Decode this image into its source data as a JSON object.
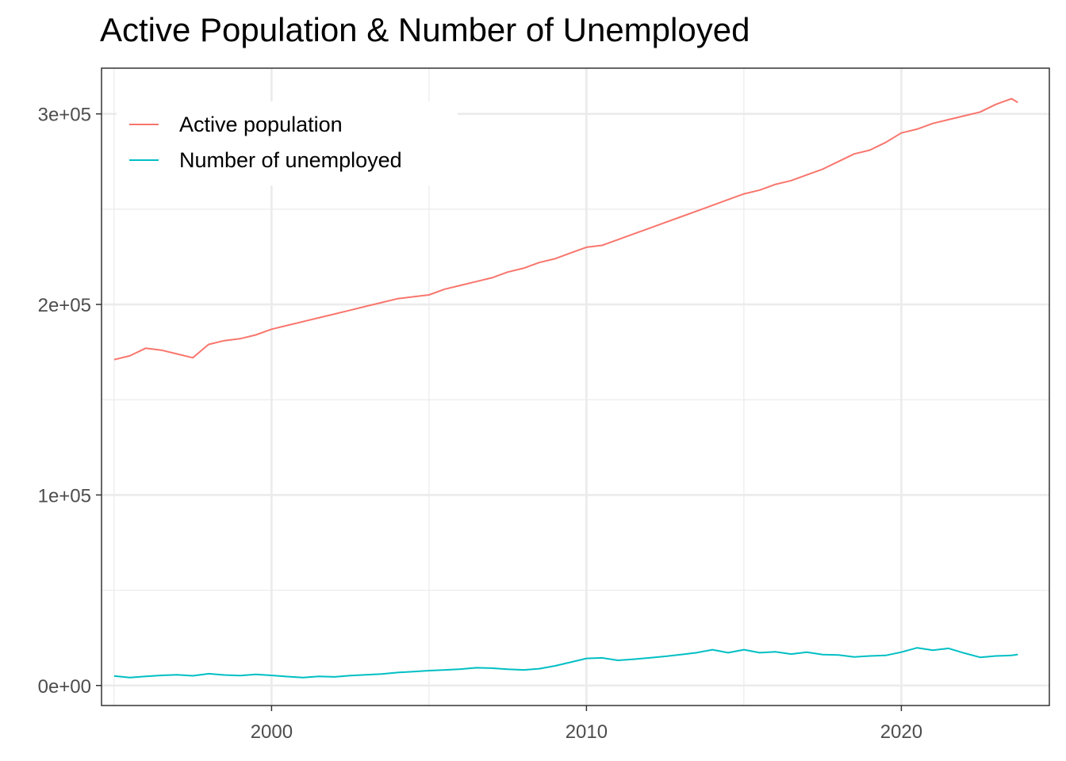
{
  "chart_data": {
    "type": "line",
    "title": "Active Population & Number of Unemployed",
    "xlabel": "",
    "ylabel": "",
    "x_ticks": [
      2000,
      2010,
      2020
    ],
    "y_ticks": [
      0,
      100000,
      200000,
      300000
    ],
    "y_tick_labels": [
      "0e+00",
      "1e+05",
      "2e+05",
      "3e+05"
    ],
    "xlim": [
      1994.6,
      2024.7
    ],
    "ylim": [
      -10500,
      324000
    ],
    "grid": true,
    "legend_position": "top-left inside",
    "series": [
      {
        "name": "Active population",
        "color": "#F8766D",
        "x": [
          1995.0,
          1995.5,
          1996.0,
          1996.5,
          1997.0,
          1997.5,
          1998.0,
          1998.5,
          1999.0,
          1999.5,
          2000.0,
          2000.5,
          2001.0,
          2001.5,
          2002.0,
          2002.5,
          2003.0,
          2003.5,
          2004.0,
          2004.5,
          2005.0,
          2005.5,
          2006.0,
          2006.5,
          2007.0,
          2007.5,
          2008.0,
          2008.5,
          2009.0,
          2009.5,
          2010.0,
          2010.5,
          2011.0,
          2011.5,
          2012.0,
          2012.5,
          2013.0,
          2013.5,
          2014.0,
          2014.5,
          2015.0,
          2015.5,
          2016.0,
          2016.5,
          2017.0,
          2017.5,
          2018.0,
          2018.5,
          2019.0,
          2019.5,
          2020.0,
          2020.5,
          2021.0,
          2021.5,
          2022.0,
          2022.5,
          2023.0,
          2023.5,
          2023.7
        ],
        "y": [
          171000,
          173000,
          177000,
          176000,
          174000,
          172000,
          179000,
          181000,
          182000,
          184000,
          187000,
          189000,
          191000,
          193000,
          195000,
          197000,
          199000,
          201000,
          203000,
          204000,
          205000,
          208000,
          210000,
          212000,
          214000,
          217000,
          219000,
          222000,
          224000,
          227000,
          230000,
          231000,
          234000,
          237000,
          240000,
          243000,
          246000,
          249000,
          252000,
          255000,
          258000,
          260000,
          263000,
          265000,
          268000,
          271000,
          275000,
          279000,
          281000,
          285000,
          290000,
          292000,
          295000,
          297000,
          299000,
          301000,
          305000,
          308000,
          306000
        ]
      },
      {
        "name": "Number of unemployed",
        "color": "#00BFC4",
        "x": [
          1995.0,
          1995.5,
          1996.0,
          1996.5,
          1997.0,
          1997.5,
          1998.0,
          1998.5,
          1999.0,
          1999.5,
          2000.0,
          2000.5,
          2001.0,
          2001.5,
          2002.0,
          2002.5,
          2003.0,
          2003.5,
          2004.0,
          2004.5,
          2005.0,
          2005.5,
          2006.0,
          2006.5,
          2007.0,
          2007.5,
          2008.0,
          2008.5,
          2009.0,
          2009.5,
          2010.0,
          2010.5,
          2011.0,
          2011.5,
          2012.0,
          2012.5,
          2013.0,
          2013.5,
          2014.0,
          2014.5,
          2015.0,
          2015.5,
          2016.0,
          2016.5,
          2017.0,
          2017.5,
          2018.0,
          2018.5,
          2019.0,
          2019.5,
          2020.0,
          2020.5,
          2021.0,
          2021.5,
          2022.0,
          2022.5,
          2023.0,
          2023.5,
          2023.7
        ],
        "y": [
          5000,
          4200,
          4800,
          5300,
          5600,
          5100,
          6200,
          5500,
          5200,
          5800,
          5300,
          4700,
          4200,
          4800,
          4500,
          5200,
          5600,
          6000,
          6800,
          7300,
          7800,
          8200,
          8600,
          9300,
          9100,
          8500,
          8200,
          8800,
          10300,
          12200,
          14200,
          14500,
          13200,
          13800,
          14500,
          15300,
          16200,
          17200,
          18800,
          17200,
          18800,
          17200,
          17700,
          16500,
          17500,
          16200,
          16000,
          15000,
          15500,
          15800,
          17500,
          19800,
          18500,
          19500,
          17000,
          14800,
          15500,
          15800,
          16300
        ]
      }
    ]
  }
}
